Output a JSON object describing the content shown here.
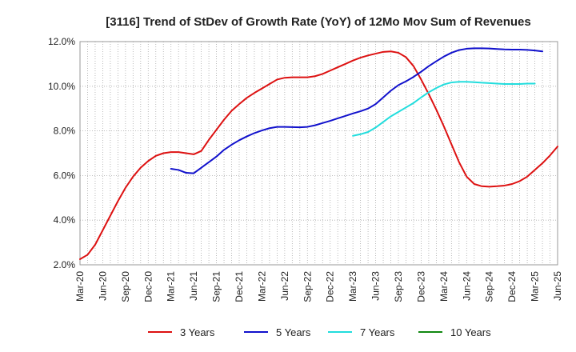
{
  "chart_data": {
    "type": "line",
    "title": "[3116]  Trend of StDev of Growth Rate (YoY) of 12Mo Mov Sum of Revenues",
    "xlabel": "",
    "ylabel": "",
    "ylim": [
      2.0,
      12.0
    ],
    "y_ticks": [
      "2.0%",
      "4.0%",
      "6.0%",
      "8.0%",
      "10.0%",
      "12.0%"
    ],
    "x_ticks": [
      "Mar-20",
      "Jun-20",
      "Sep-20",
      "Dec-20",
      "Mar-21",
      "Jun-21",
      "Sep-21",
      "Dec-21",
      "Mar-22",
      "Jun-22",
      "Sep-22",
      "Dec-22",
      "Mar-23",
      "Jun-23",
      "Sep-23",
      "Dec-23",
      "Mar-24",
      "Jun-24",
      "Sep-24",
      "Dec-24",
      "Mar-25",
      "Jun-25"
    ],
    "x_range_months": [
      0,
      63
    ],
    "grid": true,
    "legend_position": "bottom",
    "series": [
      {
        "name": "3 Years",
        "color": "#dd1111",
        "start_month": 0,
        "values": [
          2.25,
          2.45,
          2.9,
          3.55,
          4.2,
          4.85,
          5.45,
          5.95,
          6.35,
          6.65,
          6.88,
          7.0,
          7.05,
          7.05,
          7.0,
          6.95,
          7.1,
          7.6,
          8.05,
          8.5,
          8.9,
          9.2,
          9.48,
          9.7,
          9.9,
          10.1,
          10.3,
          10.38,
          10.4,
          10.4,
          10.4,
          10.45,
          10.55,
          10.7,
          10.85,
          11.0,
          11.15,
          11.28,
          11.38,
          11.46,
          11.54,
          11.56,
          11.5,
          11.3,
          10.9,
          10.3,
          9.65,
          8.95,
          8.2,
          7.4,
          6.6,
          5.95,
          5.62,
          5.52,
          5.5,
          5.52,
          5.55,
          5.62,
          5.75,
          5.95,
          6.25,
          6.55,
          6.9,
          7.3
        ]
      },
      {
        "name": "5 Years",
        "color": "#1111cc",
        "start_month": 12,
        "values": [
          6.3,
          6.25,
          6.12,
          6.1,
          6.35,
          6.6,
          6.85,
          7.15,
          7.38,
          7.58,
          7.75,
          7.9,
          8.02,
          8.12,
          8.18,
          8.18,
          8.17,
          8.16,
          8.18,
          8.25,
          8.35,
          8.45,
          8.56,
          8.67,
          8.78,
          8.88,
          9.0,
          9.2,
          9.5,
          9.8,
          10.05,
          10.22,
          10.42,
          10.65,
          10.9,
          11.12,
          11.33,
          11.5,
          11.62,
          11.68,
          11.7,
          11.7,
          11.69,
          11.67,
          11.65,
          11.64,
          11.64,
          11.63,
          11.6,
          11.56
        ]
      },
      {
        "name": "7 Years",
        "color": "#22dddd",
        "start_month": 36,
        "values": [
          7.78,
          7.85,
          7.95,
          8.15,
          8.4,
          8.65,
          8.85,
          9.05,
          9.25,
          9.5,
          9.73,
          9.92,
          10.08,
          10.17,
          10.2,
          10.2,
          10.18,
          10.16,
          10.14,
          10.12,
          10.1,
          10.1,
          10.1,
          10.12,
          10.12
        ]
      },
      {
        "name": "10 Years",
        "color": "#118811",
        "start_month": 0,
        "values": []
      }
    ]
  }
}
